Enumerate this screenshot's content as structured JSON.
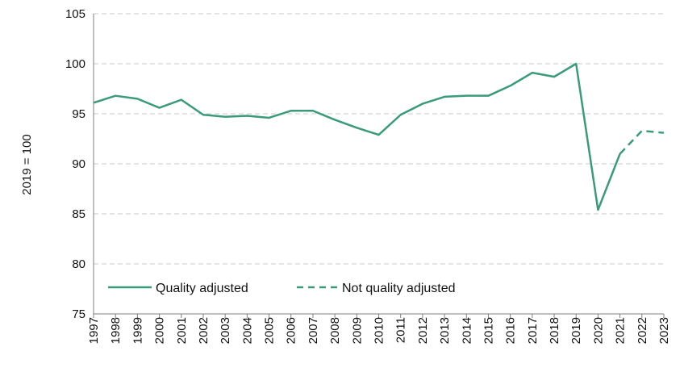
{
  "chart_data": {
    "type": "line",
    "title": "",
    "xlabel": "",
    "ylabel": "2019 = 100",
    "ylim": [
      75,
      105
    ],
    "yticks": [
      75,
      80,
      85,
      90,
      95,
      100,
      105
    ],
    "grid": "horizontal dashed",
    "legend_position": "bottom-left",
    "colors": {
      "line": "#3a9b7a",
      "grid": "#c8c8c8",
      "axis": "#7f7f7f"
    },
    "categories": [
      "1997",
      "1998",
      "1999",
      "2000",
      "2001",
      "2002",
      "2003",
      "2004",
      "2005",
      "2006",
      "2007",
      "2008",
      "2009",
      "2010",
      "2011",
      "2012",
      "2013",
      "2014",
      "2015",
      "2016",
      "2017",
      "2018",
      "2019",
      "2020",
      "2021",
      "2022",
      "2023"
    ],
    "series": [
      {
        "name": "Quality adjusted",
        "style": "solid",
        "values": [
          96.1,
          96.8,
          96.5,
          95.6,
          96.4,
          94.9,
          94.7,
          94.8,
          94.6,
          95.3,
          95.3,
          94.4,
          93.6,
          92.9,
          94.9,
          96.0,
          96.7,
          96.8,
          96.8,
          97.8,
          99.1,
          98.7,
          100.0,
          85.4,
          91.0,
          null,
          null
        ]
      },
      {
        "name": "Not quality adjusted",
        "style": "dashed",
        "values": [
          null,
          null,
          null,
          null,
          null,
          null,
          null,
          null,
          null,
          null,
          null,
          null,
          null,
          null,
          null,
          null,
          null,
          null,
          null,
          null,
          null,
          null,
          null,
          null,
          91.0,
          93.3,
          93.1
        ]
      }
    ]
  }
}
